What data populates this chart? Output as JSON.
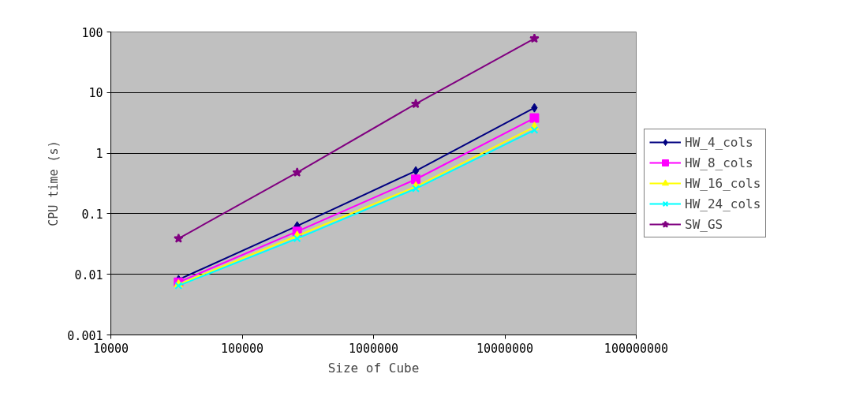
{
  "chart_data": {
    "type": "line",
    "xlabel": "Size of Cube",
    "ylabel": "CPU time (s)",
    "log": "xy",
    "grid": "y",
    "legend": "right",
    "xlim": [
      10000,
      100000000
    ],
    "xticks": [
      10000,
      100000,
      1000000,
      10000000,
      100000000
    ],
    "ylim": [
      0.001,
      100
    ],
    "yticks": [
      0.001,
      0.01,
      0.1,
      1,
      10,
      100
    ],
    "x": [
      32768,
      262144,
      2097152,
      16777216
    ],
    "series": [
      {
        "name": "HW_4_cols",
        "color": "#000080",
        "marker": "diamond",
        "values": [
          0.0082,
          0.063,
          0.51,
          5.6
        ]
      },
      {
        "name": "HW_8_cols",
        "color": "#ff00ff",
        "marker": "square",
        "values": [
          0.0074,
          0.051,
          0.37,
          3.8
        ]
      },
      {
        "name": "HW_16_cols",
        "color": "#ffff00",
        "marker": "triangle",
        "values": [
          0.0068,
          0.043,
          0.28,
          2.7
        ]
      },
      {
        "name": "HW_24_cols",
        "color": "#00ffff",
        "marker": "cross",
        "values": [
          0.0065,
          0.039,
          0.26,
          2.4
        ]
      },
      {
        "name": "SW_GS",
        "color": "#800080",
        "marker": "star",
        "values": [
          0.039,
          0.48,
          6.5,
          78
        ]
      }
    ]
  }
}
